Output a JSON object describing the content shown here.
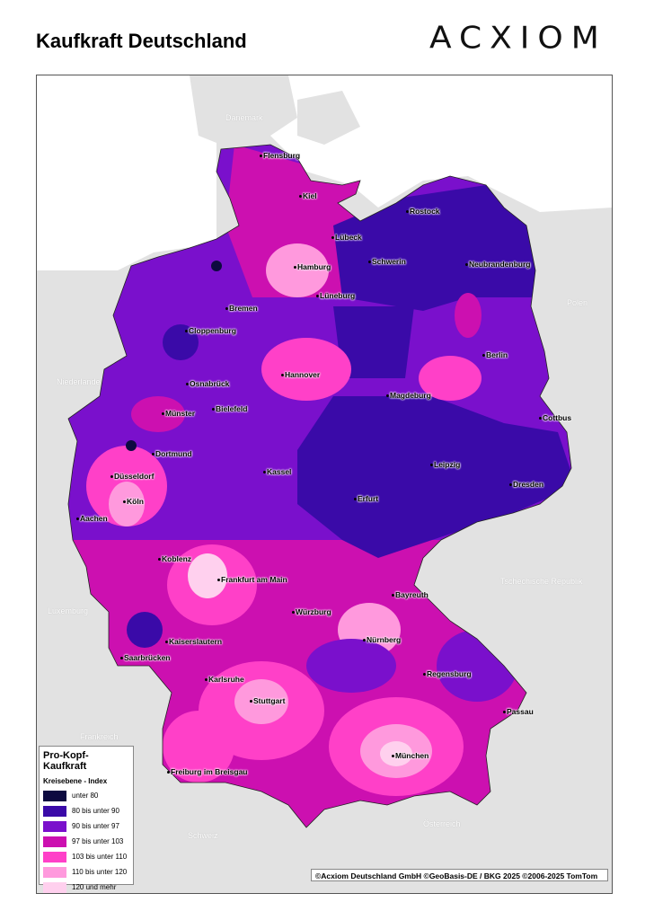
{
  "title": "Kaufkraft Deutschland",
  "logo": "ACXIOM",
  "countries": [
    "Dänemark",
    "Polen",
    "Niederlande",
    "Luxemburg",
    "Tschechische Republik",
    "Frankreich",
    "Schweiz",
    "Österreich"
  ],
  "cities": [
    "Flensburg",
    "Kiel",
    "Rostock",
    "Lübeck",
    "Schwerin",
    "Neubrandenburg",
    "Hamburg",
    "Lüneburg",
    "Bremen",
    "Cloppenburg",
    "Berlin",
    "Hannover",
    "Osnabrück",
    "Magdeburg",
    "Cottbus",
    "Münster",
    "Bielefeld",
    "Dortmund",
    "Düsseldorf",
    "Kassel",
    "Leipzig",
    "Köln",
    "Dresden",
    "Erfurt",
    "Aachen",
    "Koblenz",
    "Frankfurt am Main",
    "Bayreuth",
    "Würzburg",
    "Nürnberg",
    "Kaiserslautern",
    "Saarbrücken",
    "Regensburg",
    "Karlsruhe",
    "Stuttgart",
    "Passau",
    "München",
    "Freiburg im Breisgau"
  ],
  "legend": {
    "title": "Pro-Kopf-Kaufkraft",
    "subtitle": "Kreisebene - Index",
    "classes": [
      {
        "label": "unter 80",
        "color": "#0d0a40"
      },
      {
        "label": "80 bis unter 90",
        "color": "#3a0aa8"
      },
      {
        "label": "90 bis unter 97",
        "color": "#7a10cc"
      },
      {
        "label": "97 bis unter 103",
        "color": "#cc10b0"
      },
      {
        "label": "103 bis unter 110",
        "color": "#ff40c8"
      },
      {
        "label": "110 bis unter 120",
        "color": "#ff99dd"
      },
      {
        "label": "120 und mehr",
        "color": "#ffd0ee"
      }
    ]
  },
  "copyright": "©Acxiom Deutschland GmbH ©GeoBasis-DE / BKG 2025 ©2006-2025 TomTom"
}
